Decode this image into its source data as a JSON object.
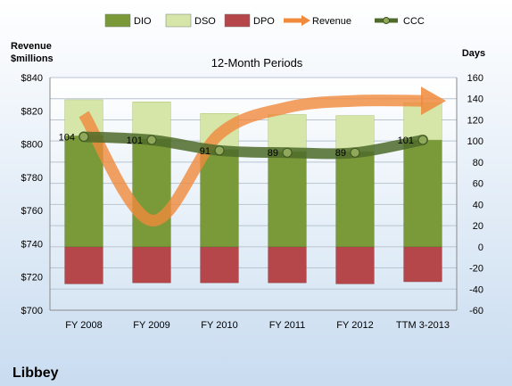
{
  "chart_data": {
    "type": "bar",
    "title": "12-Month Periods",
    "company": "Libbey",
    "y_left_label_line1": "Revenue",
    "y_left_label_line2": "$millions",
    "y_right_label": "Days",
    "categories": [
      "FY 2008",
      "FY 2009",
      "FY 2010",
      "FY 2011",
      "FY 2012",
      "TTM 3-2013"
    ],
    "ylim_right": [
      -60,
      160
    ],
    "ylim_left": [
      700,
      840
    ],
    "right_ticks": [
      160,
      140,
      120,
      100,
      80,
      60,
      40,
      20,
      0,
      -20,
      -40,
      -60
    ],
    "left_ticks": [
      "$840",
      "$820",
      "$800",
      "$780",
      "$760",
      "$740",
      "$720",
      "$700"
    ],
    "grid": true,
    "legend_position": "top",
    "series": [
      {
        "name": "DIO",
        "kind": "stacked-bar-positive",
        "color": "#7a9a3a",
        "values": [
          105,
          102,
          92,
          90,
          90,
          101
        ]
      },
      {
        "name": "DSO",
        "kind": "stacked-bar-positive",
        "color": "#d6e6a8",
        "values": [
          34,
          35,
          34,
          35,
          34,
          35
        ]
      },
      {
        "name": "DPO",
        "kind": "bar-negative",
        "color": "#b5474b",
        "values": [
          -35,
          -34,
          -34,
          -34,
          -35,
          -33
        ]
      },
      {
        "name": "Revenue",
        "kind": "line-arrow",
        "axis": "left",
        "color": "#f08a3c",
        "values": [
          818,
          754,
          806,
          822,
          826,
          826
        ]
      },
      {
        "name": "CCC",
        "kind": "line",
        "color": "#4e6b2a",
        "values": [
          104,
          101,
          91,
          89,
          89,
          101
        ],
        "labels": [
          "104",
          "101",
          "91",
          "89",
          "89",
          "101"
        ]
      }
    ]
  }
}
